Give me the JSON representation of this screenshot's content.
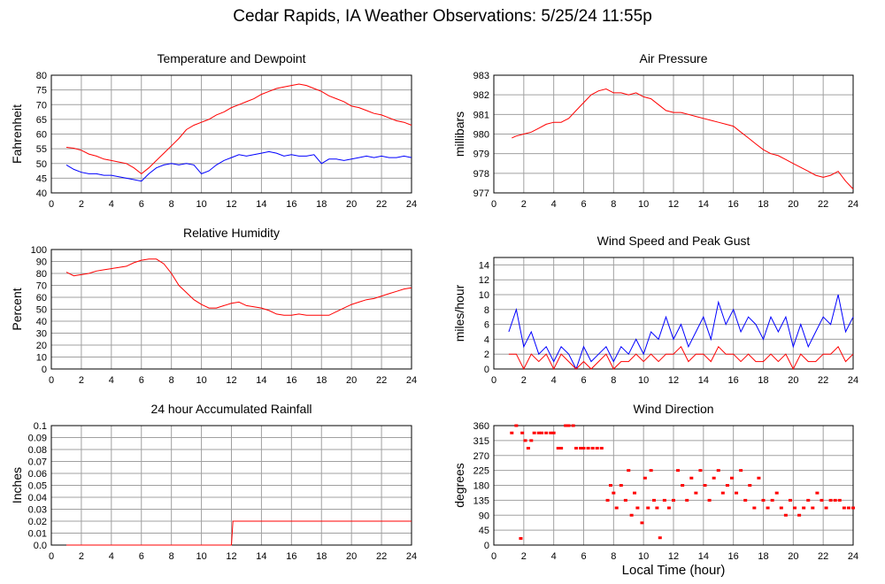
{
  "page": {
    "title": "Cedar Rapids, IA Weather Observations: 5/25/24 11:55p",
    "xlabel": "Local Time (hour)"
  },
  "colors": {
    "red": "#ff0000",
    "blue": "#0000ff",
    "grid": "#a0a0a0"
  },
  "chart_data": [
    {
      "type": "line",
      "title": "Temperature and Dewpoint",
      "ylabel": "Fahrenheit",
      "xlim": [
        0,
        24
      ],
      "ylim": [
        40,
        80
      ],
      "yticks": [
        "40",
        "45",
        "50",
        "55",
        "60",
        "65",
        "70",
        "75",
        "80"
      ],
      "xticks": [
        "0",
        "2",
        "4",
        "6",
        "8",
        "10",
        "12",
        "14",
        "16",
        "18",
        "20",
        "22",
        "24"
      ],
      "grid": true,
      "series": [
        {
          "color": "#ff0000",
          "x": [
            1,
            1.5,
            2,
            2.5,
            3,
            3.5,
            4,
            4.5,
            5,
            5.5,
            6,
            6.5,
            7,
            7.5,
            8,
            8.5,
            9,
            9.5,
            10,
            10.5,
            11,
            11.5,
            12,
            12.5,
            13,
            13.5,
            14,
            14.5,
            15,
            15.5,
            16,
            16.5,
            17,
            17.5,
            18,
            18.5,
            19,
            19.5,
            20,
            20.5,
            21,
            21.5,
            22,
            22.5,
            23,
            23.5,
            24
          ],
          "y": [
            55.5,
            55.2,
            54.5,
            53.2,
            52.5,
            51.5,
            51,
            50.5,
            50,
            48.5,
            46.5,
            48.5,
            51,
            53.5,
            56,
            58.5,
            61.5,
            63,
            64,
            65,
            66.5,
            67.5,
            69,
            70,
            71,
            72,
            73.5,
            74.5,
            75.5,
            76,
            76.5,
            77,
            76.5,
            75.5,
            74.5,
            73,
            72,
            71,
            69.5,
            69,
            68,
            67,
            66.5,
            65.5,
            64.5,
            64,
            63
          ]
        },
        {
          "color": "#0000ff",
          "x": [
            1,
            1.5,
            2,
            2.5,
            3,
            3.5,
            4,
            4.5,
            5,
            5.5,
            6,
            6.5,
            7,
            7.5,
            8,
            8.5,
            9,
            9.5,
            10,
            10.5,
            11,
            11.5,
            12,
            12.5,
            13,
            13.5,
            14,
            14.5,
            15,
            15.5,
            16,
            16.5,
            17,
            17.5,
            18,
            18.5,
            19,
            19.5,
            20,
            20.5,
            21,
            21.5,
            22,
            22.5,
            23,
            23.5,
            24
          ],
          "y": [
            49.5,
            48,
            47,
            46.5,
            46.5,
            46,
            46,
            45.5,
            45,
            44.5,
            44,
            46.5,
            48.5,
            49.5,
            50,
            49.5,
            50,
            49.5,
            46.5,
            47.5,
            49.5,
            51,
            52,
            53,
            52.5,
            53,
            53.5,
            54,
            53.5,
            52.5,
            53,
            52.5,
            52.5,
            53,
            50,
            51.5,
            51.5,
            51,
            51.5,
            52,
            52.5,
            52,
            52.5,
            52,
            52,
            52.5,
            52
          ]
        }
      ]
    },
    {
      "type": "line",
      "title": "Air Pressure",
      "ylabel": "millibars",
      "xlim": [
        0,
        24
      ],
      "ylim": [
        977,
        983
      ],
      "yticks": [
        "977",
        "978",
        "979",
        "980",
        "981",
        "982",
        "983"
      ],
      "xticks": [
        "0",
        "2",
        "4",
        "6",
        "8",
        "10",
        "12",
        "14",
        "16",
        "18",
        "20",
        "22",
        "24"
      ],
      "grid": true,
      "series": [
        {
          "color": "#ff0000",
          "x": [
            1.2,
            1.5,
            2,
            2.5,
            3,
            3.5,
            4,
            4.5,
            5,
            5.5,
            6,
            6.5,
            7,
            7.5,
            8,
            8.5,
            9,
            9.5,
            10,
            10.5,
            11,
            11.5,
            12,
            12.5,
            13,
            13.5,
            14,
            14.5,
            15,
            15.5,
            16,
            16.5,
            17,
            17.5,
            18,
            18.5,
            19,
            19.5,
            20,
            20.5,
            21,
            21.5,
            22,
            22.5,
            23,
            23.5,
            24
          ],
          "y": [
            979.8,
            979.9,
            980,
            980.1,
            980.3,
            980.5,
            980.6,
            980.6,
            980.8,
            981.2,
            981.6,
            982,
            982.2,
            982.3,
            982.1,
            982.1,
            982,
            982.1,
            981.9,
            981.8,
            981.5,
            981.2,
            981.1,
            981.1,
            981,
            980.9,
            980.8,
            980.7,
            980.6,
            980.5,
            980.4,
            980.1,
            979.8,
            979.5,
            979.2,
            979,
            978.9,
            978.7,
            978.5,
            978.3,
            978.1,
            977.9,
            977.8,
            977.9,
            978.1,
            977.6,
            977.2
          ]
        }
      ]
    },
    {
      "type": "line",
      "title": "Relative Humidity",
      "ylabel": "Percent",
      "xlim": [
        0,
        24
      ],
      "ylim": [
        0,
        100
      ],
      "yticks": [
        "0",
        "10",
        "20",
        "30",
        "40",
        "50",
        "60",
        "70",
        "80",
        "90",
        "100"
      ],
      "xticks": [
        "0",
        "2",
        "4",
        "6",
        "8",
        "10",
        "12",
        "14",
        "16",
        "18",
        "20",
        "22",
        "24"
      ],
      "grid": true,
      "series": [
        {
          "color": "#ff0000",
          "x": [
            1,
            1.5,
            2,
            2.5,
            3,
            3.5,
            4,
            4.5,
            5,
            5.5,
            6,
            6.5,
            7,
            7.5,
            8,
            8.5,
            9,
            9.5,
            10,
            10.5,
            11,
            11.5,
            12,
            12.5,
            13,
            13.5,
            14,
            14.5,
            15,
            15.5,
            16,
            16.5,
            17,
            17.5,
            18,
            18.5,
            19,
            19.5,
            20,
            20.5,
            21,
            21.5,
            22,
            22.5,
            23,
            23.5,
            24
          ],
          "y": [
            81,
            78,
            79,
            80,
            82,
            83,
            84,
            85,
            86,
            89,
            91,
            92,
            92,
            88,
            80,
            70,
            64,
            58,
            54,
            51,
            51,
            53,
            55,
            56,
            53,
            52,
            51,
            49,
            46,
            45,
            45,
            46,
            45,
            45,
            45,
            45,
            48,
            51,
            54,
            56,
            58,
            59,
            61,
            63,
            65,
            67,
            68
          ]
        }
      ]
    },
    {
      "type": "line",
      "title": "Wind Speed and Peak Gust",
      "ylabel": "miles/hour",
      "xlim": [
        0,
        24
      ],
      "ylim": [
        0,
        15
      ],
      "yticks": [
        "0",
        "2",
        "4",
        "6",
        "8",
        "10",
        "12",
        "14"
      ],
      "xticks": [
        "0",
        "2",
        "4",
        "6",
        "8",
        "10",
        "12",
        "14",
        "16",
        "18",
        "20",
        "22",
        "24"
      ],
      "grid": true,
      "series": [
        {
          "color": "#0000ff",
          "x": [
            1,
            1.5,
            2,
            2.5,
            3,
            3.5,
            4,
            4.5,
            5,
            5.5,
            6,
            6.5,
            7,
            7.5,
            8,
            8.5,
            9,
            9.5,
            10,
            10.5,
            11,
            11.5,
            12,
            12.5,
            13,
            13.5,
            14,
            14.5,
            15,
            15.5,
            16,
            16.5,
            17,
            17.5,
            18,
            18.5,
            19,
            19.5,
            20,
            20.5,
            21,
            21.5,
            22,
            22.5,
            23,
            23.5,
            24
          ],
          "y": [
            5,
            8,
            3,
            5,
            2,
            3,
            1,
            3,
            2,
            0,
            3,
            1,
            2,
            3,
            1,
            3,
            2,
            4,
            2,
            5,
            4,
            7,
            4,
            6,
            3,
            5,
            7,
            4,
            9,
            6,
            8,
            5,
            7,
            6,
            4,
            7,
            5,
            7,
            3,
            6,
            3,
            5,
            7,
            6,
            10,
            5,
            7
          ]
        },
        {
          "color": "#ff0000",
          "x": [
            1,
            1.5,
            2,
            2.5,
            3,
            3.5,
            4,
            4.5,
            5,
            5.5,
            6,
            6.5,
            7,
            7.5,
            8,
            8.5,
            9,
            9.5,
            10,
            10.5,
            11,
            11.5,
            12,
            12.5,
            13,
            13.5,
            14,
            14.5,
            15,
            15.5,
            16,
            16.5,
            17,
            17.5,
            18,
            18.5,
            19,
            19.5,
            20,
            20.5,
            21,
            21.5,
            22,
            22.5,
            23,
            23.5,
            24
          ],
          "y": [
            2,
            2,
            0,
            2,
            1,
            2,
            0,
            2,
            1,
            0,
            1,
            0,
            1,
            2,
            0,
            1,
            1,
            2,
            1,
            2,
            1,
            2,
            2,
            3,
            1,
            2,
            2,
            1,
            3,
            2,
            2,
            1,
            2,
            1,
            1,
            2,
            1,
            2,
            0,
            2,
            1,
            1,
            2,
            2,
            3,
            1,
            2
          ]
        }
      ]
    },
    {
      "type": "line",
      "title": "24 hour Accumulated Rainfall",
      "ylabel": "Inches",
      "xlim": [
        0,
        24
      ],
      "ylim": [
        0,
        0.1
      ],
      "yticks": [
        "0.0",
        "0.01",
        "0.02",
        "0.03",
        "0.04",
        "0.05",
        "0.06",
        "0.07",
        "0.08",
        "0.09",
        "0.1"
      ],
      "xticks": [
        "0",
        "2",
        "4",
        "6",
        "8",
        "10",
        "12",
        "14",
        "16",
        "18",
        "20",
        "22",
        "24"
      ],
      "grid": true,
      "series": [
        {
          "color": "#ff0000",
          "x": [
            1,
            12,
            12.1,
            24
          ],
          "y": [
            0,
            0,
            0.02,
            0.02
          ]
        }
      ]
    },
    {
      "type": "scatter",
      "title": "Wind Direction",
      "ylabel": "degrees",
      "xlim": [
        0,
        24
      ],
      "ylim": [
        0,
        360
      ],
      "yticks": [
        "0",
        "45",
        "90",
        "135",
        "180",
        "225",
        "270",
        "315",
        "360"
      ],
      "xticks": [
        "0",
        "2",
        "4",
        "6",
        "8",
        "10",
        "12",
        "14",
        "16",
        "18",
        "20",
        "22",
        "24"
      ],
      "grid": true,
      "series": [
        {
          "color": "#ff0000",
          "x": [
            1.2,
            1.5,
            1.8,
            1.9,
            2.1,
            2.3,
            2.5,
            2.7,
            3,
            3.2,
            3.5,
            3.8,
            4,
            4.3,
            4.5,
            4.8,
            5,
            5.3,
            5.5,
            5.8,
            6,
            6.3,
            6.6,
            6.9,
            7.2,
            7.6,
            7.8,
            8,
            8.2,
            8.5,
            8.8,
            9,
            9.2,
            9.4,
            9.6,
            9.9,
            10.1,
            10.3,
            10.5,
            10.7,
            10.9,
            11.1,
            11.4,
            11.7,
            12,
            12.3,
            12.6,
            12.9,
            13.2,
            13.5,
            13.8,
            14.1,
            14.4,
            14.7,
            15,
            15.3,
            15.6,
            15.9,
            16.2,
            16.5,
            16.8,
            17.1,
            17.4,
            17.7,
            18,
            18.3,
            18.6,
            18.9,
            19.2,
            19.5,
            19.8,
            20.1,
            20.4,
            20.7,
            21,
            21.3,
            21.6,
            21.9,
            22.2,
            22.5,
            22.8,
            23.1,
            23.4,
            23.7,
            24
          ],
          "y": [
            338,
            360,
            20,
            338,
            315,
            292,
            315,
            338,
            338,
            338,
            338,
            338,
            338,
            292,
            292,
            360,
            360,
            360,
            292,
            292,
            292,
            292,
            292,
            292,
            292,
            135,
            180,
            157,
            112,
            180,
            135,
            225,
            90,
            157,
            112,
            67,
            202,
            112,
            225,
            135,
            112,
            22,
            135,
            112,
            135,
            225,
            180,
            135,
            202,
            157,
            225,
            180,
            135,
            202,
            225,
            157,
            180,
            202,
            157,
            225,
            135,
            180,
            112,
            202,
            135,
            112,
            135,
            157,
            112,
            90,
            135,
            112,
            90,
            112,
            135,
            112,
            157,
            135,
            112,
            135,
            135,
            135,
            112,
            112,
            112
          ]
        }
      ]
    }
  ]
}
